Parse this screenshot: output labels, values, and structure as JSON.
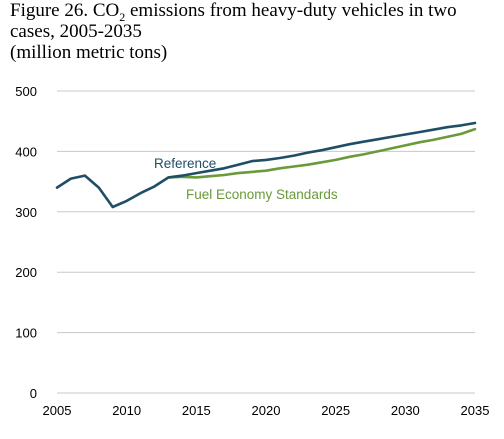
{
  "title": {
    "prefix": "Figure 26. CO",
    "subscript": "2",
    "line1_rest": " emissions from heavy-duty vehicles in two",
    "line2": "cases, 2005-2035",
    "line3": "(million metric tons)"
  },
  "chart_data": {
    "type": "line",
    "title": "Figure 26. CO2 emissions from heavy-duty vehicles in two cases, 2005-2035",
    "ylabel": "million metric tons",
    "xlabel": "",
    "xlim": [
      2005,
      2035
    ],
    "ylim": [
      0,
      500
    ],
    "x_ticks": [
      "2005",
      "2010",
      "2015",
      "2020",
      "2025",
      "2030",
      "2035"
    ],
    "y_ticks": [
      "0",
      "100",
      "200",
      "300",
      "400",
      "500"
    ],
    "grid": "horizontal",
    "series": [
      {
        "name": "Reference",
        "color": "#1f4e66",
        "x": [
          2005,
          2006,
          2007,
          2008,
          2009,
          2010,
          2011,
          2012,
          2013,
          2014,
          2015,
          2016,
          2017,
          2018,
          2019,
          2020,
          2021,
          2022,
          2023,
          2024,
          2025,
          2026,
          2027,
          2028,
          2029,
          2030,
          2031,
          2032,
          2033,
          2034,
          2035
        ],
        "values": [
          340,
          355,
          360,
          340,
          308,
          318,
          331,
          342,
          357,
          360,
          364,
          368,
          372,
          378,
          384,
          386,
          389,
          393,
          398,
          402,
          407,
          412,
          416,
          420,
          424,
          428,
          432,
          436,
          440,
          443,
          447
        ]
      },
      {
        "name": "Fuel Economy Standards",
        "color": "#6a9a3a",
        "x": [
          2013,
          2014,
          2015,
          2016,
          2017,
          2018,
          2019,
          2020,
          2021,
          2022,
          2023,
          2024,
          2025,
          2026,
          2027,
          2028,
          2029,
          2030,
          2031,
          2032,
          2033,
          2034,
          2035
        ],
        "values": [
          357,
          358,
          357,
          359,
          361,
          364,
          366,
          368,
          372,
          375,
          378,
          382,
          386,
          391,
          395,
          400,
          405,
          410,
          415,
          419,
          424,
          429,
          437
        ]
      }
    ]
  }
}
